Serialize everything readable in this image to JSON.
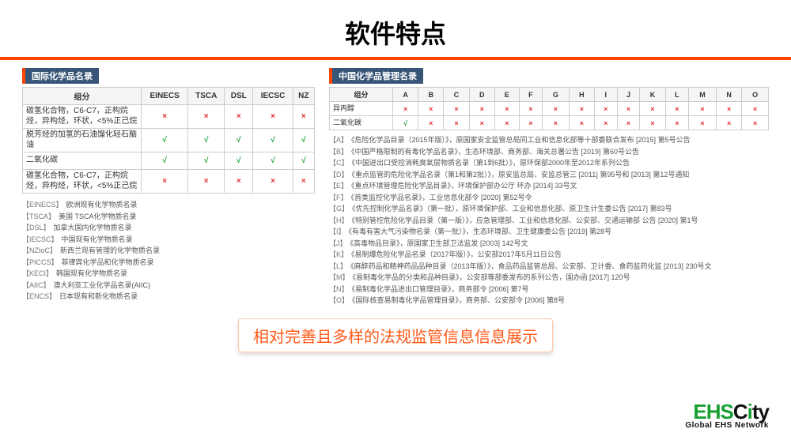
{
  "title": "软件特点",
  "colors": {
    "accent": "#ff4500",
    "header_bg": "#375577",
    "check": "#19a033",
    "cross": "#e03030",
    "border": "#cccccc"
  },
  "left": {
    "heading": "国际化学品名录",
    "columns": [
      "组分",
      "EINECS",
      "TSCA",
      "DSL",
      "IECSC",
      "NZ"
    ],
    "rows": [
      {
        "component": "碳氢化合物，C6-C7，正构烷烃，异构烃，环状，<5%正己烷",
        "marks": [
          "×",
          "×",
          "×",
          "×",
          "×"
        ]
      },
      {
        "component": "脱芳烃的加氢的石油馏化轻石脑油",
        "marks": [
          "√",
          "√",
          "√",
          "√",
          "√"
        ]
      },
      {
        "component": "二氧化碳",
        "marks": [
          "√",
          "√",
          "√",
          "√",
          "√"
        ]
      },
      {
        "component": "碳氢化合物，C6-C7，正构烷烃，异构烃，环状，<5%正己烷",
        "marks": [
          "×",
          "×",
          "×",
          "×",
          "×"
        ]
      }
    ],
    "legend": [
      {
        "key": "【EINECS】",
        "text": "欧洲现有化学物质名录"
      },
      {
        "key": "【TSCA】",
        "text": "美国 TSCA化学物质名录"
      },
      {
        "key": "【DSL】",
        "text": "加拿大国内化学物质名录"
      },
      {
        "key": "【IECSC】",
        "text": "中国现有化学物质名录"
      },
      {
        "key": "【NZIoC】",
        "text": "新西兰现有管理的化学物质名录"
      },
      {
        "key": "【PICCS】",
        "text": "菲律宾化学品和化学物质名录"
      },
      {
        "key": "【KECI】",
        "text": "韩国现有化学物质名录"
      },
      {
        "key": "【AIIC】",
        "text": "澳大利亚工业化学品名录(AIIC)"
      },
      {
        "key": "【ENCS】",
        "text": "日本现有和新化物质名录"
      }
    ]
  },
  "right": {
    "heading": "中国化学品管理名录",
    "columns": [
      "组分",
      "A",
      "B",
      "C",
      "D",
      "E",
      "F",
      "G",
      "H",
      "I",
      "J",
      "K",
      "L",
      "M",
      "N",
      "O"
    ],
    "rows": [
      {
        "component": "异丙醇",
        "marks": [
          "×",
          "×",
          "×",
          "×",
          "×",
          "×",
          "×",
          "×",
          "×",
          "×",
          "×",
          "×",
          "×",
          "×",
          "×"
        ]
      },
      {
        "component": "二氧化碳",
        "marks": [
          "√",
          "×",
          "×",
          "×",
          "×",
          "×",
          "×",
          "×",
          "×",
          "×",
          "×",
          "×",
          "×",
          "×",
          "×"
        ]
      }
    ],
    "notes": [
      {
        "key": "【A】",
        "text": "《危险化学品目录（2015年版）》，原国家安全监管总局同工业和信息化部等十部委联合发布 [2015] 第5号公告"
      },
      {
        "key": "【B】",
        "text": "《中国严格限制的有毒化学品名录》，生态环境部、商务部、海关总署公告 [2019] 第60号公告"
      },
      {
        "key": "【C】",
        "text": "《中国进出口受控消耗臭氧层物质名录（第1到6批）》，原环保部2000年至2012年系列公告"
      },
      {
        "key": "【D】",
        "text": "《重点监管的危险化学品名录（第1和第2批）》，原安监总局、安监总管三 [2011] 第95号和 [2013] 第12号通知"
      },
      {
        "key": "【E】",
        "text": "《重点环境管理危险化学品目录》，环境保护部办公厅 环办 [2014] 33号文"
      },
      {
        "key": "【F】",
        "text": "《首类监控化学品名录》，工业信息化部令 [2020] 第52号令"
      },
      {
        "key": "【G】",
        "text": "《优先控制化学品名录》（第一批），原环境保护部、工业和信息化部、原卫生计生委公告 [2017] 第83号"
      },
      {
        "key": "【H】",
        "text": "《特别管控危险化学品目录（第一版）》，应急管理部、工业和信息化部、公安部、交通运输部 公告 [2020] 第1号"
      },
      {
        "key": "【I】",
        "text": "《有毒有害大气污染物名录（第一批）》，生态环境部、卫生健康委公告 [2019] 第28号"
      },
      {
        "key": "【J】",
        "text": "《高毒物品目录》，原国家卫生部卫法监发 [2003] 142号文"
      },
      {
        "key": "【K】",
        "text": "《易制爆危险化学品名录（2017年版）》，公安部2017年5月11日公告"
      },
      {
        "key": "【L】",
        "text": "《麻醉药品和精神药品品种目录（2013年版）》，食品药品监管总局、公安部、卫计委、食药监药化监 [2013] 230号文"
      },
      {
        "key": "【M】",
        "text": "《易制毒化学品的分类和品种目录》，公安部等部委发布的系列公告，国办函 [2017] 120号"
      },
      {
        "key": "【N】",
        "text": "《易制毒化学品进出口管理目录》，商务部令 [2006] 第7号"
      },
      {
        "key": "【O】",
        "text": "《国际核查易制毒化学品管理目录》，商务部、公安部令 [2006] 第8号"
      }
    ]
  },
  "banner": "相对完善且多样的法规监管信息信息展示",
  "logo": {
    "text": "EHSCity",
    "sub": "Global EHS Network"
  }
}
